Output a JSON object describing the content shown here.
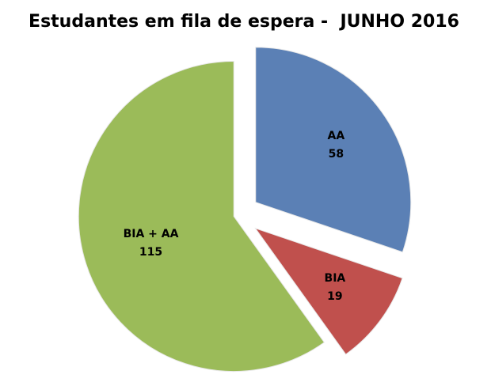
{
  "chart_data": {
    "type": "pie",
    "title": "Estudantes em fila de espera -  JUNHO 2016",
    "categories": [
      "AA",
      "BIA",
      "BIA + AA"
    ],
    "values": [
      58,
      19,
      115
    ],
    "colors": [
      "#5b80b5",
      "#c0504d",
      "#9bbb59"
    ]
  }
}
